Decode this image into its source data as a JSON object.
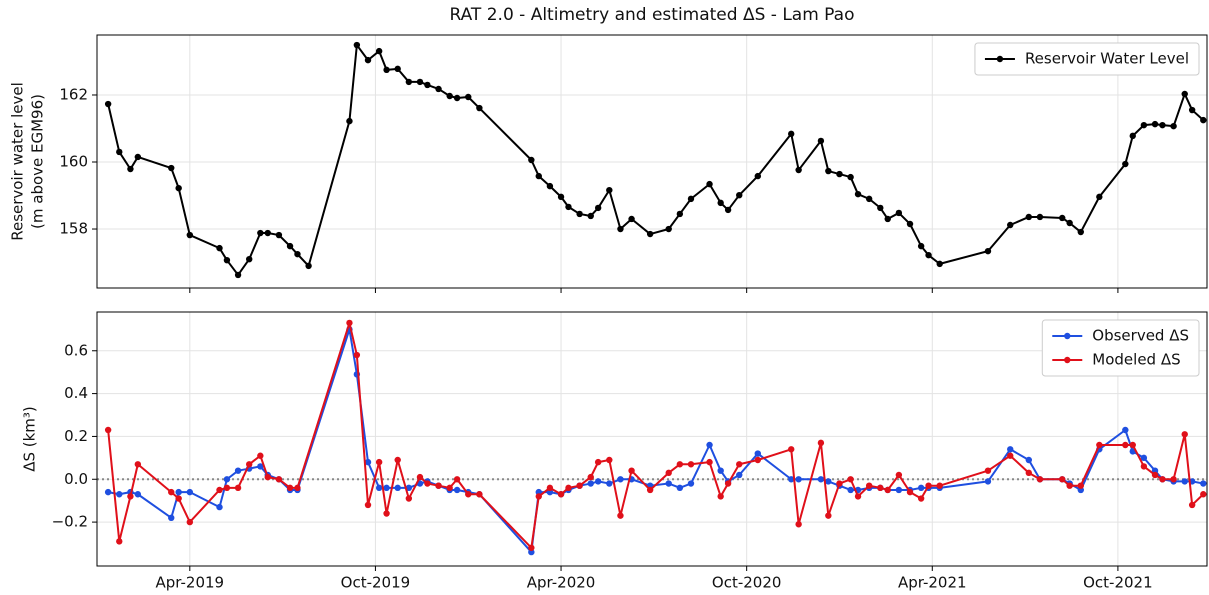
{
  "chart_data": [
    {
      "type": "line",
      "title": "RAT 2.0 - Altimetry and estimated ΔS - Lam Pao",
      "ylabel": [
        "Reservoir water level",
        "(m above EGM96)"
      ],
      "xlim": [
        2019.0,
        2021.99
      ],
      "ylim": [
        156.24,
        163.79
      ],
      "xticks": [
        2019.25,
        2019.75,
        2020.25,
        2020.75,
        2021.25,
        2021.75
      ],
      "yticks": [
        158,
        160,
        162
      ],
      "grid": true,
      "legend": "upper right",
      "x": [
        2019.03,
        2019.06,
        2019.09,
        2019.11,
        2019.2,
        2019.22,
        2019.25,
        2019.33,
        2019.35,
        2019.38,
        2019.41,
        2019.44,
        2019.46,
        2019.49,
        2019.52,
        2019.54,
        2019.57,
        2019.68,
        2019.7,
        2019.73,
        2019.76,
        2019.78,
        2019.81,
        2019.84,
        2019.87,
        2019.89,
        2019.92,
        2019.95,
        2019.97,
        2020.0,
        2020.03,
        2020.17,
        2020.19,
        2020.22,
        2020.25,
        2020.27,
        2020.3,
        2020.33,
        2020.35,
        2020.38,
        2020.41,
        2020.44,
        2020.49,
        2020.54,
        2020.57,
        2020.6,
        2020.65,
        2020.68,
        2020.7,
        2020.73,
        2020.78,
        2020.87,
        2020.89,
        2020.95,
        2020.97,
        2021.0,
        2021.03,
        2021.05,
        2021.08,
        2021.11,
        2021.13,
        2021.16,
        2021.19,
        2021.22,
        2021.24,
        2021.27,
        2021.4,
        2021.46,
        2021.51,
        2021.54,
        2021.6,
        2021.62,
        2021.65,
        2021.7,
        2021.77,
        2021.79,
        2021.82,
        2021.85,
        2021.87,
        2021.9,
        2021.93,
        2021.95,
        2021.98
      ],
      "series": [
        {
          "name": "Reservoir Water Level",
          "color": "#000000",
          "values": [
            161.73,
            160.3,
            159.79,
            160.15,
            159.82,
            159.22,
            157.82,
            157.43,
            157.07,
            156.63,
            157.1,
            157.88,
            157.88,
            157.82,
            157.49,
            157.25,
            156.9,
            161.22,
            163.49,
            163.04,
            163.31,
            162.75,
            162.78,
            162.39,
            162.39,
            162.3,
            162.18,
            161.97,
            161.91,
            161.94,
            161.61,
            160.06,
            159.58,
            159.28,
            158.96,
            158.66,
            158.45,
            158.39,
            158.63,
            159.16,
            158.0,
            158.3,
            157.85,
            158.0,
            158.45,
            158.9,
            159.34,
            158.78,
            158.57,
            159.01,
            159.58,
            160.84,
            159.76,
            160.63,
            159.73,
            159.64,
            159.55,
            159.04,
            158.9,
            158.63,
            158.3,
            158.48,
            158.15,
            157.49,
            157.22,
            156.96,
            157.34,
            158.12,
            158.36,
            158.36,
            158.33,
            158.18,
            157.91,
            158.96,
            159.94,
            160.78,
            161.1,
            161.13,
            161.1,
            161.07,
            162.03,
            161.55,
            161.25
          ]
        }
      ]
    },
    {
      "type": "line",
      "ylabel": "ΔS (km³)",
      "xlim": [
        2019.0,
        2021.99
      ],
      "ylim": [
        -0.405,
        0.781
      ],
      "xticks": [
        {
          "value": 2019.25,
          "label": "Apr-2019"
        },
        {
          "value": 2019.75,
          "label": "Oct-2019"
        },
        {
          "value": 2020.25,
          "label": "Apr-2020"
        },
        {
          "value": 2020.75,
          "label": "Oct-2020"
        },
        {
          "value": 2021.25,
          "label": "Apr-2021"
        },
        {
          "value": 2021.75,
          "label": "Oct-2021"
        }
      ],
      "yticks": [
        {
          "value": -0.2,
          "label": "−0.2"
        },
        {
          "value": 0,
          "label": "0.0"
        },
        0.2,
        0.4,
        0.6
      ],
      "grid": true,
      "legend": "upper right",
      "hline": 0,
      "x": [
        2019.03,
        2019.06,
        2019.09,
        2019.11,
        2019.2,
        2019.22,
        2019.25,
        2019.33,
        2019.35,
        2019.38,
        2019.41,
        2019.44,
        2019.46,
        2019.49,
        2019.52,
        2019.54,
        2019.68,
        2019.7,
        2019.73,
        2019.76,
        2019.78,
        2019.81,
        2019.84,
        2019.87,
        2019.89,
        2019.92,
        2019.95,
        2019.97,
        2020.0,
        2020.03,
        2020.17,
        2020.19,
        2020.22,
        2020.25,
        2020.27,
        2020.3,
        2020.33,
        2020.35,
        2020.38,
        2020.41,
        2020.44,
        2020.49,
        2020.54,
        2020.57,
        2020.6,
        2020.65,
        2020.68,
        2020.7,
        2020.73,
        2020.78,
        2020.87,
        2020.89,
        2020.95,
        2020.97,
        2021.0,
        2021.03,
        2021.05,
        2021.08,
        2021.11,
        2021.13,
        2021.16,
        2021.19,
        2021.22,
        2021.24,
        2021.27,
        2021.4,
        2021.46,
        2021.51,
        2021.54,
        2021.6,
        2021.62,
        2021.65,
        2021.7,
        2021.77,
        2021.79,
        2021.82,
        2021.85,
        2021.87,
        2021.9,
        2021.93,
        2021.95,
        2021.98
      ],
      "series": [
        {
          "name": "Observed ΔS",
          "color": "#1f4fe0",
          "values": [
            -0.06,
            -0.07,
            -0.06,
            -0.07,
            -0.18,
            -0.06,
            -0.06,
            -0.13,
            0.0,
            0.04,
            0.05,
            0.06,
            0.02,
            0.0,
            -0.05,
            -0.05,
            0.7,
            0.49,
            0.08,
            -0.04,
            -0.04,
            -0.04,
            -0.04,
            -0.02,
            -0.01,
            -0.03,
            -0.05,
            -0.05,
            -0.06,
            -0.07,
            -0.34,
            -0.06,
            -0.06,
            -0.07,
            -0.05,
            -0.03,
            -0.02,
            -0.01,
            -0.02,
            0.0,
            0.0,
            -0.03,
            -0.02,
            -0.04,
            -0.02,
            0.16,
            0.04,
            -0.01,
            0.02,
            0.12,
            0.0,
            0.0,
            0.0,
            -0.01,
            -0.03,
            -0.05,
            -0.05,
            -0.04,
            -0.04,
            -0.05,
            -0.05,
            -0.05,
            -0.04,
            -0.04,
            -0.04,
            -0.01,
            0.14,
            0.09,
            0.0,
            0.0,
            -0.02,
            -0.05,
            0.14,
            0.23,
            0.13,
            0.1,
            0.04,
            0.0,
            -0.01,
            -0.01,
            -0.01,
            -0.02
          ]
        },
        {
          "name": "Modeled ΔS",
          "color": "#e0101a",
          "values": [
            0.23,
            -0.29,
            -0.08,
            0.07,
            -0.06,
            -0.09,
            -0.2,
            -0.05,
            -0.04,
            -0.04,
            0.07,
            0.11,
            0.01,
            0.0,
            -0.04,
            -0.04,
            0.73,
            0.58,
            -0.12,
            0.08,
            -0.16,
            0.09,
            -0.09,
            0.01,
            -0.02,
            -0.03,
            -0.04,
            0.0,
            -0.07,
            -0.07,
            -0.32,
            -0.08,
            -0.04,
            -0.07,
            -0.04,
            -0.03,
            0.01,
            0.08,
            0.09,
            -0.17,
            0.04,
            -0.05,
            0.03,
            0.07,
            0.07,
            0.08,
            -0.08,
            -0.02,
            0.07,
            0.09,
            0.14,
            -0.21,
            0.17,
            -0.17,
            -0.02,
            0.0,
            -0.08,
            -0.03,
            -0.04,
            -0.05,
            0.02,
            -0.06,
            -0.09,
            -0.03,
            -0.03,
            0.04,
            0.11,
            0.03,
            0.0,
            0.0,
            -0.03,
            -0.03,
            0.16,
            0.16,
            0.16,
            0.06,
            0.02,
            0.0,
            0.0,
            0.21,
            -0.12,
            -0.07
          ]
        }
      ]
    }
  ]
}
